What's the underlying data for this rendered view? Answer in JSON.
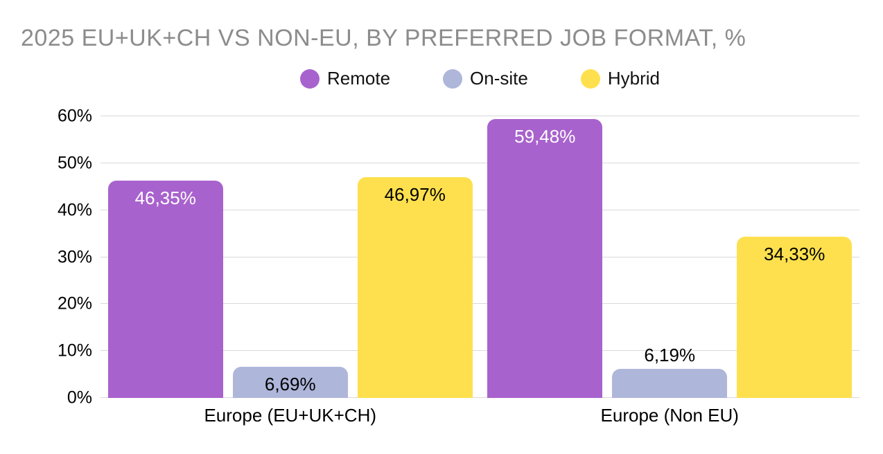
{
  "chart_data": {
    "type": "bar",
    "title": "2025 EU+UK+CH VS NON-EU, BY PREFERRED JOB FORMAT, %",
    "title_color": "#8c8c8c",
    "categories": [
      "Europe (EU+UK+CH)",
      "Europe (Non EU)"
    ],
    "series": [
      {
        "name": "Remote",
        "color": "#a862cd",
        "label_color": "#ffffff",
        "values": [
          46.35,
          59.48
        ],
        "labels": [
          "46,35%",
          "59,48%"
        ],
        "label_positions": [
          "inside",
          "inside"
        ]
      },
      {
        "name": "On-site",
        "color": "#aeb6da",
        "label_color": "#000000",
        "values": [
          6.69,
          6.19
        ],
        "labels": [
          "6,69%",
          "6,19%"
        ],
        "label_positions": [
          "inside",
          "above"
        ]
      },
      {
        "name": "Hybrid",
        "color": "#fee04e",
        "label_color": "#000000",
        "values": [
          46.97,
          34.33
        ],
        "labels": [
          "46,97%",
          "34,33%"
        ],
        "label_positions": [
          "inside",
          "inside"
        ]
      }
    ],
    "ylim": [
      0,
      60
    ],
    "yticks": [
      "0%",
      "10%",
      "20%",
      "30%",
      "40%",
      "50%",
      "60%"
    ],
    "ytick_values": [
      0,
      10,
      20,
      30,
      40,
      50,
      60
    ],
    "grid": true,
    "gridline_color": "#d9d9d9",
    "legend_position": "top-center",
    "legend_marker": "circle"
  }
}
